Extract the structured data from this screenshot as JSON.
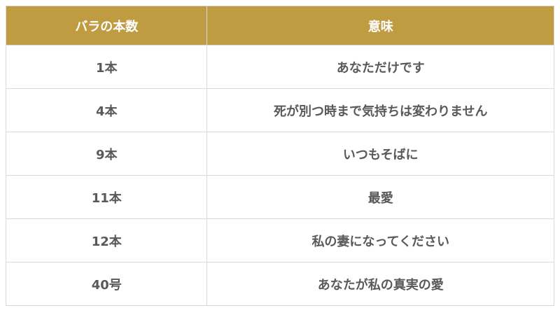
{
  "chart_data": {
    "type": "table",
    "columns": [
      "バラの本数",
      "意味"
    ],
    "rows": [
      [
        "1本",
        "あなただけです"
      ],
      [
        "4本",
        "死が別つ時まで気持ちは変わりません"
      ],
      [
        "9本",
        "いつもそばに"
      ],
      [
        "11本",
        "最愛"
      ],
      [
        "12本",
        "私の妻になってください"
      ],
      [
        "40号",
        "あなたが私の真実の愛"
      ]
    ]
  },
  "colors": {
    "header_bg": "#bf9c41",
    "header_text": "#ffffff",
    "body_text": "#595959",
    "border": "#d9d9d9"
  }
}
